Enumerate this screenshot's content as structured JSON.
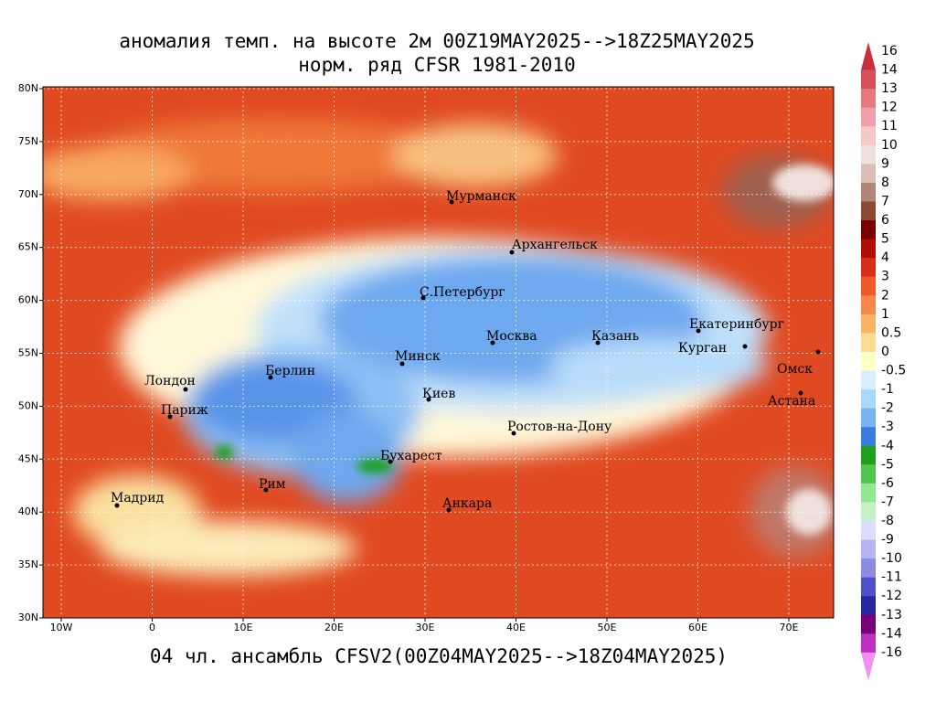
{
  "title": "аномалия темп. на высоте 2м 00Z19MAY2025-->18Z25MAY2025",
  "subtitle": "норм. ряд CFSR 1981-2010",
  "footer": "04 чл. ансамбль CFSV2(00Z04MAY2025-->18Z04MAY2025)",
  "lat_labels": [
    "80N",
    "75N",
    "70N",
    "65N",
    "60N",
    "55N",
    "50N",
    "45N",
    "40N",
    "35N",
    "30N"
  ],
  "lon_labels": [
    "10W",
    "0",
    "10E",
    "20E",
    "30E",
    "40E",
    "50E",
    "60E",
    "70E"
  ],
  "cities": [
    "Мурманск",
    "Архангельск",
    "С.Петербург",
    "Москва",
    "Казань",
    "Екатеринбург",
    "Курган",
    "Омск",
    "Астана",
    "Минск",
    "Берлин",
    "Лондон",
    "Париж",
    "Киев",
    "Ростов-на-Дону",
    "Бухарест",
    "Рим",
    "Мадрид",
    "Анкара"
  ],
  "colorbar": {
    "labels": [
      "16",
      "14",
      "13",
      "12",
      "11",
      "10",
      "9",
      "8",
      "7",
      "6",
      "5",
      "4",
      "3",
      "2",
      "1",
      "0.5",
      "0",
      "-0.5",
      "-1",
      "-2",
      "-3",
      "-4",
      "-5",
      "-6",
      "-7",
      "-8",
      "-9",
      "-10",
      "-11",
      "-12",
      "-13",
      "-14",
      "-16"
    ],
    "colors": [
      "#c8303c",
      "#d8505a",
      "#e87880",
      "#f0a0a8",
      "#f8c8c8",
      "#f0e0dc",
      "#d8c0b8",
      "#b08878",
      "#8c4830",
      "#780000",
      "#b01000",
      "#d83018",
      "#f05a28",
      "#f88848",
      "#fab464",
      "#fcdc94",
      "#ffffc8",
      "#d8f0fc",
      "#a8d8fa",
      "#78b4f0",
      "#3c7ce0",
      "#1ea020",
      "#50c850",
      "#90e890",
      "#c8f0c8",
      "#dcdcfc",
      "#b4b4f0",
      "#8c8ce0",
      "#5050c8",
      "#2828a0",
      "#780078",
      "#c030c0",
      "#f090f0"
    ]
  }
}
